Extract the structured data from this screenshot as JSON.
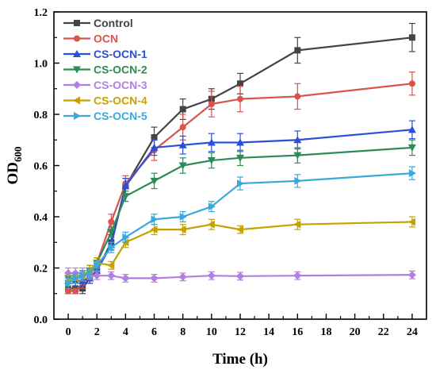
{
  "chart_data": {
    "type": "line",
    "xlabel": "Time (h)",
    "ylabel_main": "OD",
    "ylabel_sub": "600",
    "xlim": [
      -1,
      25
    ],
    "ylim": [
      0.0,
      1.2
    ],
    "xticks": [
      0,
      2,
      4,
      6,
      8,
      10,
      12,
      14,
      16,
      18,
      20,
      22,
      24
    ],
    "xtick_labels": [
      "0",
      "2",
      "4",
      "6",
      "8",
      "10",
      "12",
      "14",
      "16",
      "18",
      "20",
      "22",
      "24"
    ],
    "yticks": [
      0.0,
      0.2,
      0.4,
      0.6,
      0.8,
      1.0,
      1.2
    ],
    "ytick_labels": [
      "0.0",
      "0.2",
      "0.4",
      "0.6",
      "0.8",
      "1.0",
      "1.2"
    ],
    "legend_position": "top-left",
    "series": [
      {
        "name": "Control",
        "color": "#444444",
        "marker": "square",
        "x": [
          0,
          0.5,
          1,
          1.5,
          2,
          3,
          4,
          6,
          8,
          10,
          12,
          16,
          24
        ],
        "y": [
          0.12,
          0.12,
          0.12,
          0.16,
          0.19,
          0.3,
          0.52,
          0.71,
          0.82,
          0.86,
          0.92,
          1.05,
          1.1
        ],
        "err": [
          0.02,
          0.02,
          0.02,
          0.02,
          0.02,
          0.03,
          0.03,
          0.04,
          0.04,
          0.04,
          0.04,
          0.05,
          0.055
        ]
      },
      {
        "name": "OCN",
        "color": "#d9534a",
        "marker": "circle",
        "x": [
          0,
          0.5,
          1,
          1.5,
          2,
          3,
          4,
          6,
          8,
          10,
          12,
          16,
          24
        ],
        "y": [
          0.11,
          0.11,
          0.14,
          0.17,
          0.22,
          0.38,
          0.53,
          0.66,
          0.75,
          0.84,
          0.86,
          0.87,
          0.92
        ],
        "err": [
          0.01,
          0.01,
          0.02,
          0.02,
          0.02,
          0.03,
          0.03,
          0.04,
          0.05,
          0.05,
          0.05,
          0.05,
          0.045
        ]
      },
      {
        "name": "CS-OCN-1",
        "color": "#2b4fd8",
        "marker": "triangle-up",
        "x": [
          0,
          0.5,
          1,
          1.5,
          2,
          3,
          4,
          6,
          8,
          10,
          12,
          16,
          24
        ],
        "y": [
          0.15,
          0.15,
          0.15,
          0.16,
          0.19,
          0.29,
          0.52,
          0.67,
          0.68,
          0.69,
          0.69,
          0.7,
          0.74
        ],
        "err": [
          0.02,
          0.02,
          0.02,
          0.02,
          0.02,
          0.02,
          0.03,
          0.03,
          0.035,
          0.035,
          0.035,
          0.035,
          0.035
        ]
      },
      {
        "name": "CS-OCN-2",
        "color": "#2e8b57",
        "marker": "triangle-down",
        "x": [
          0,
          0.5,
          1,
          1.5,
          2,
          3,
          4,
          6,
          8,
          10,
          12,
          16,
          24
        ],
        "y": [
          0.16,
          0.16,
          0.17,
          0.19,
          0.22,
          0.34,
          0.48,
          0.54,
          0.6,
          0.62,
          0.63,
          0.64,
          0.67
        ],
        "err": [
          0.02,
          0.02,
          0.02,
          0.02,
          0.02,
          0.02,
          0.02,
          0.03,
          0.03,
          0.03,
          0.03,
          0.03,
          0.03
        ]
      },
      {
        "name": "CS-OCN-3",
        "color": "#b27ee0",
        "marker": "diamond",
        "x": [
          0,
          0.5,
          1,
          1.5,
          2,
          3,
          4,
          6,
          8,
          10,
          12,
          16,
          24
        ],
        "y": [
          0.18,
          0.18,
          0.18,
          0.17,
          0.17,
          0.17,
          0.16,
          0.16,
          0.165,
          0.17,
          0.168,
          0.17,
          0.173
        ],
        "err": [
          0.02,
          0.02,
          0.02,
          0.015,
          0.015,
          0.015,
          0.015,
          0.015,
          0.015,
          0.015,
          0.015,
          0.015,
          0.015
        ]
      },
      {
        "name": "CS-OCN-4",
        "color": "#c4a200",
        "marker": "triangle-left",
        "x": [
          0,
          0.5,
          1,
          1.5,
          2,
          3,
          4,
          6,
          8,
          10,
          12,
          16,
          24
        ],
        "y": [
          0.15,
          0.16,
          0.17,
          0.19,
          0.22,
          0.21,
          0.3,
          0.35,
          0.35,
          0.37,
          0.35,
          0.37,
          0.38
        ],
        "err": [
          0.02,
          0.02,
          0.02,
          0.02,
          0.02,
          0.015,
          0.02,
          0.02,
          0.02,
          0.02,
          0.015,
          0.02,
          0.02
        ]
      },
      {
        "name": "CS-OCN-5",
        "color": "#3aa8d8",
        "marker": "triangle-right",
        "x": [
          0,
          0.5,
          1,
          1.5,
          2,
          3,
          4,
          6,
          8,
          10,
          12,
          16,
          24
        ],
        "y": [
          0.14,
          0.16,
          0.17,
          0.18,
          0.21,
          0.28,
          0.32,
          0.39,
          0.4,
          0.44,
          0.53,
          0.54,
          0.57
        ],
        "err": [
          0.02,
          0.02,
          0.02,
          0.02,
          0.02,
          0.02,
          0.02,
          0.02,
          0.02,
          0.02,
          0.025,
          0.025,
          0.025
        ]
      }
    ]
  }
}
